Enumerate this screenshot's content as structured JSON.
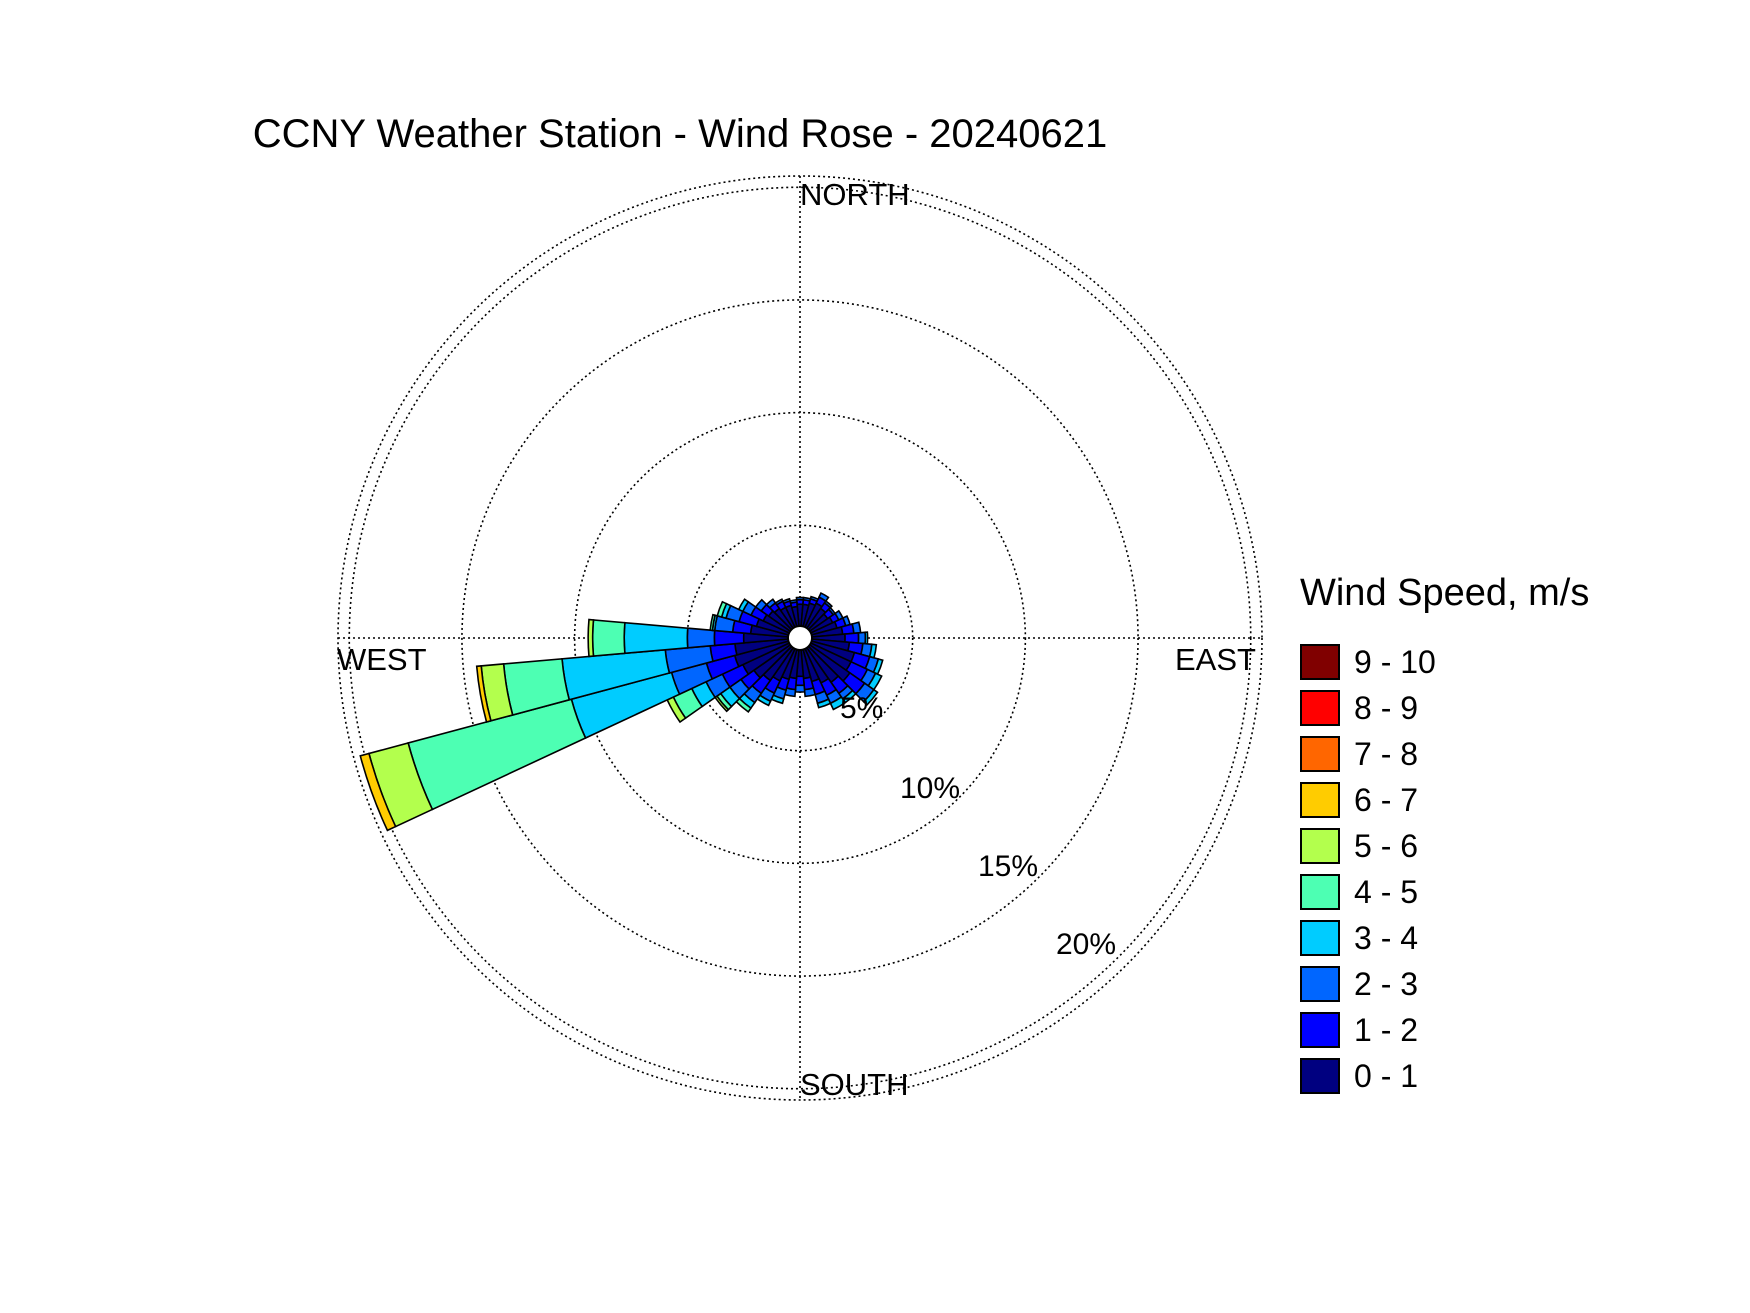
{
  "chart_data": {
    "type": "wind-rose",
    "title": "CCNY Weather Station - Wind Rose - 20240621",
    "direction_labels": {
      "north": "NORTH",
      "south": "SOUTH",
      "east": "EAST",
      "west": "WEST"
    },
    "ring_labels": [
      "5%",
      "10%",
      "15%",
      "20%"
    ],
    "rings_percent": [
      5,
      10,
      15,
      20
    ],
    "max_percent": 20.5,
    "legend_title": "Wind Speed, m/s",
    "speed_bins": [
      {
        "label": "0 - 1",
        "color": "#000080"
      },
      {
        "label": "1 - 2",
        "color": "#0000ff"
      },
      {
        "label": "2 - 3",
        "color": "#0066ff"
      },
      {
        "label": "3 - 4",
        "color": "#00ccff"
      },
      {
        "label": "4 - 5",
        "color": "#4dffb3"
      },
      {
        "label": "5 - 6",
        "color": "#b3ff4d"
      },
      {
        "label": "6 - 7",
        "color": "#ffcc00"
      },
      {
        "label": "7 - 8",
        "color": "#ff6600"
      },
      {
        "label": "8 - 9",
        "color": "#ff0000"
      },
      {
        "label": "9 - 10",
        "color": "#800000"
      }
    ],
    "sector_width_deg": 10,
    "sectors": [
      {
        "dir": 0,
        "cumulative": [
          1.5,
          1.7,
          1.8
        ]
      },
      {
        "dir": 10,
        "cumulative": [
          1.5,
          1.7,
          1.8
        ]
      },
      {
        "dir": 20,
        "cumulative": [
          1.6,
          1.8,
          1.9
        ]
      },
      {
        "dir": 30,
        "cumulative": [
          1.7,
          2.0,
          2.2
        ]
      },
      {
        "dir": 40,
        "cumulative": [
          1.6,
          1.9,
          2.0
        ]
      },
      {
        "dir": 50,
        "cumulative": [
          1.5,
          1.8,
          1.9
        ]
      },
      {
        "dir": 60,
        "cumulative": [
          1.6,
          1.9,
          2.1
        ]
      },
      {
        "dir": 70,
        "cumulative": [
          1.7,
          2.1,
          2.3
        ]
      },
      {
        "dir": 80,
        "cumulative": [
          1.9,
          2.4,
          2.7
        ]
      },
      {
        "dir": 90,
        "cumulative": [
          2.0,
          2.6,
          2.9,
          3.0
        ]
      },
      {
        "dir": 100,
        "cumulative": [
          2.2,
          2.8,
          3.2,
          3.4
        ]
      },
      {
        "dir": 110,
        "cumulative": [
          2.5,
          3.2,
          3.6,
          3.8
        ]
      },
      {
        "dir": 120,
        "cumulative": [
          2.5,
          3.3,
          3.7,
          4.0
        ]
      },
      {
        "dir": 130,
        "cumulative": [
          2.7,
          3.5,
          4.0,
          4.2
        ]
      },
      {
        "dir": 140,
        "cumulative": [
          2.4,
          3.0,
          3.3,
          3.5
        ]
      },
      {
        "dir": 150,
        "cumulative": [
          2.2,
          2.8,
          3.2,
          3.5
        ]
      },
      {
        "dir": 160,
        "cumulative": [
          2.0,
          2.6,
          3.0,
          3.2
        ]
      },
      {
        "dir": 170,
        "cumulative": [
          1.8,
          2.3,
          2.6
        ]
      },
      {
        "dir": 180,
        "cumulative": [
          1.7,
          2.1,
          2.4
        ]
      },
      {
        "dir": 190,
        "cumulative": [
          1.8,
          2.3,
          2.6
        ]
      },
      {
        "dir": 200,
        "cumulative": [
          1.9,
          2.4,
          2.8,
          3.0
        ]
      },
      {
        "dir": 210,
        "cumulative": [
          2.1,
          2.7,
          3.1,
          3.3
        ]
      },
      {
        "dir": 220,
        "cumulative": [
          2.3,
          3.0,
          3.5,
          3.8,
          4.0
        ]
      },
      {
        "dir": 230,
        "cumulative": [
          2.5,
          3.2,
          3.8,
          4.3,
          4.5,
          4.6
        ]
      },
      {
        "dir": 240,
        "cumulative": [
          2.8,
          3.8,
          4.6,
          5.3,
          6.2,
          6.5
        ]
      },
      {
        "dir": 250,
        "cumulative": [
          3.0,
          4.3,
          5.9,
          10.5,
          18.0,
          19.8,
          20.2
        ]
      },
      {
        "dir": 260,
        "cumulative": [
          2.9,
          4.0,
          6.0,
          10.6,
          13.2,
          14.2,
          14.4
        ]
      },
      {
        "dir": 270,
        "cumulative": [
          2.5,
          3.8,
          5.0,
          7.8,
          9.2,
          9.4
        ]
      },
      {
        "dir": 280,
        "cumulative": [
          2.2,
          3.0,
          3.8,
          3.9,
          4.0
        ]
      },
      {
        "dir": 290,
        "cumulative": [
          2.0,
          2.8,
          3.4,
          3.6,
          3.8
        ]
      },
      {
        "dir": 300,
        "cumulative": [
          1.8,
          2.4,
          2.8,
          3.0
        ]
      },
      {
        "dir": 310,
        "cumulative": [
          1.7,
          2.1,
          2.4
        ]
      },
      {
        "dir": 320,
        "cumulative": [
          1.6,
          1.9,
          2.1
        ]
      },
      {
        "dir": 330,
        "cumulative": [
          1.5,
          1.8,
          1.9
        ]
      },
      {
        "dir": 340,
        "cumulative": [
          1.5,
          1.7,
          1.8
        ]
      },
      {
        "dir": 350,
        "cumulative": [
          1.4,
          1.6,
          1.7
        ]
      }
    ]
  }
}
